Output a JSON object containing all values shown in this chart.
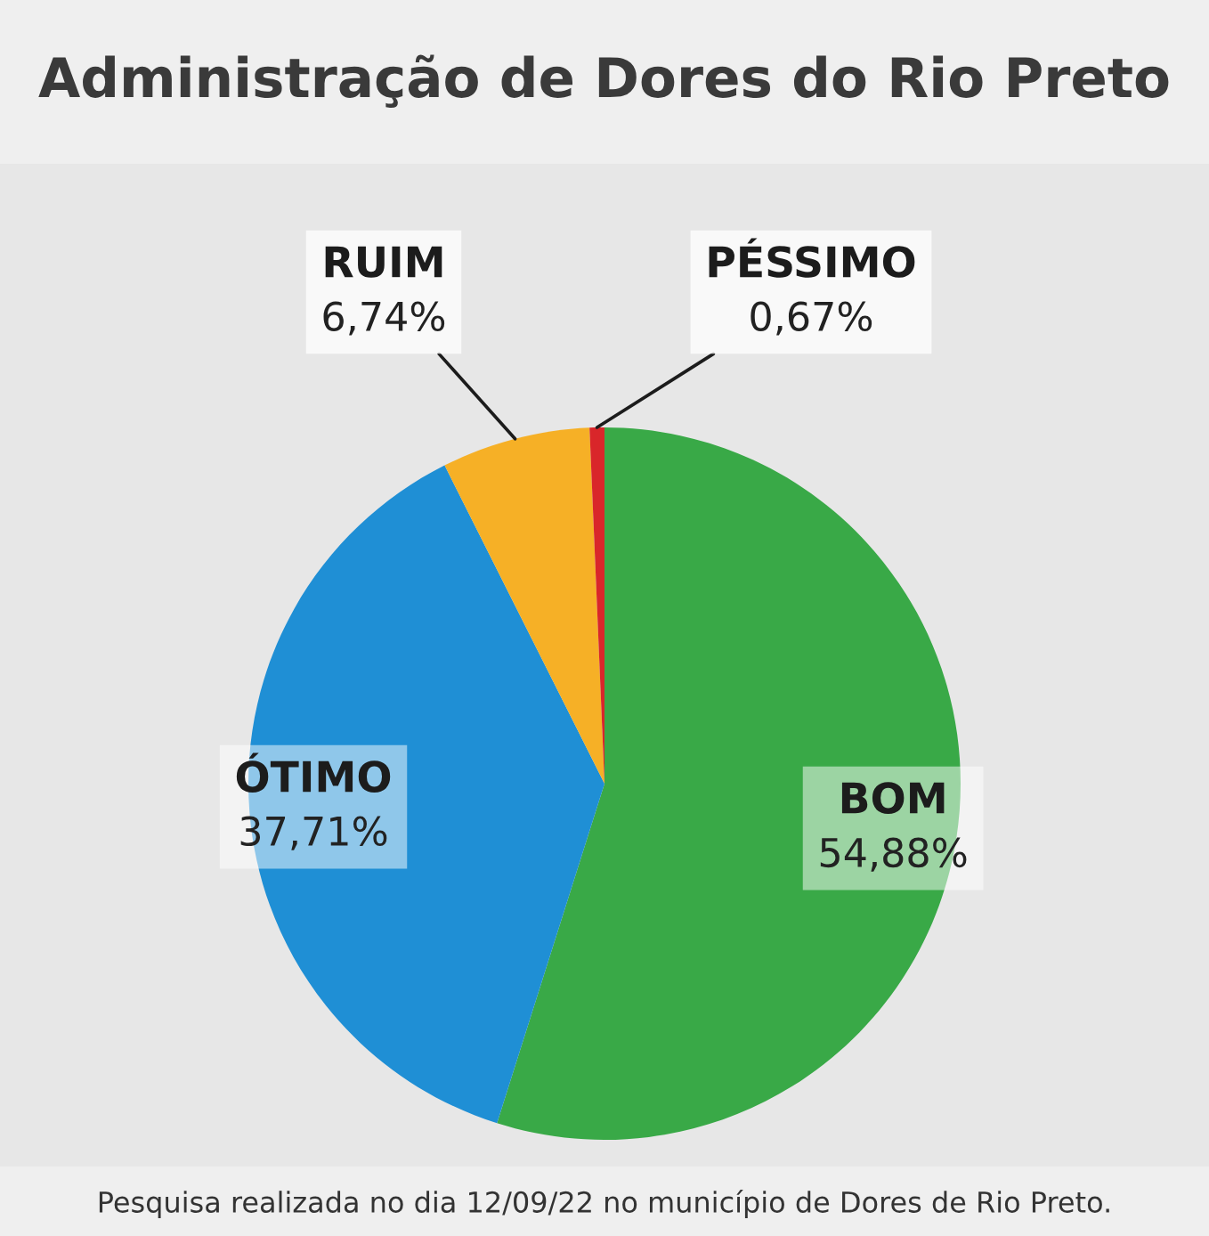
{
  "chart_data": {
    "type": "pie",
    "title": "Administração de Dores do Rio Preto",
    "categories": [
      "BOM",
      "ÓTIMO",
      "RUIM",
      "PÉSSIMO"
    ],
    "values": [
      54.88,
      37.71,
      6.74,
      0.67
    ],
    "colors": [
      "#39a947",
      "#1f8fd5",
      "#f6b026",
      "#d9262a"
    ],
    "value_labels": [
      "54,88%",
      "37,71%",
      "6,74%",
      "0,67%"
    ],
    "annotations": [
      "Pesquisa realizada no dia 12/09/22 no município de Dores de Rio Preto."
    ]
  }
}
